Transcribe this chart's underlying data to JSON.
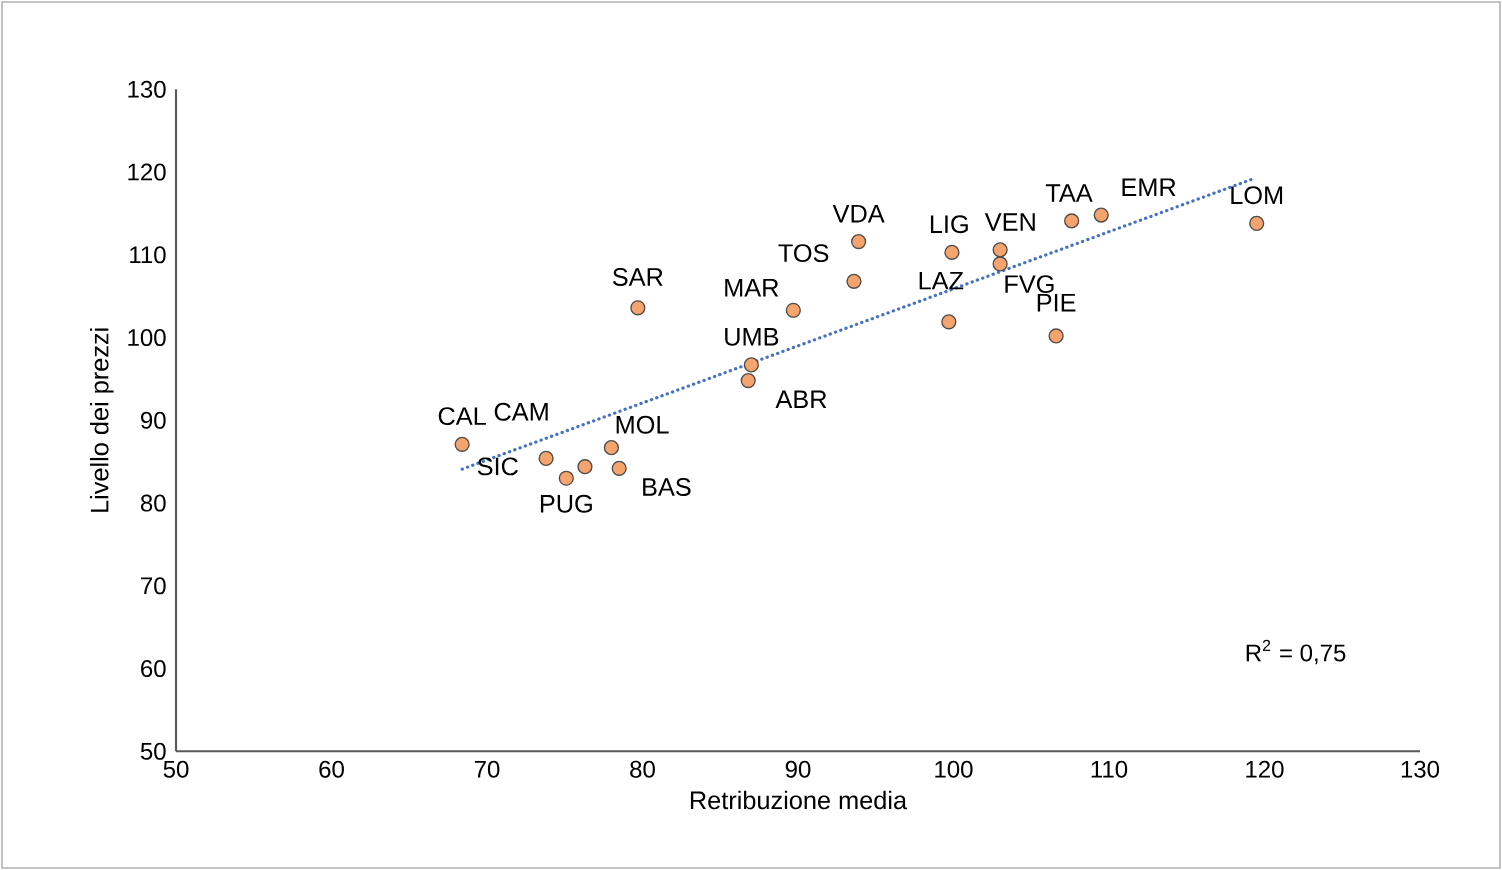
{
  "chart_data": {
    "type": "scatter",
    "xlabel": "Retribuzione media",
    "ylabel": "Livello dei prezzi",
    "xlim": [
      50,
      130
    ],
    "xticks": [
      50,
      60,
      70,
      80,
      90,
      100,
      110,
      120,
      130
    ],
    "ylim": [
      50,
      130
    ],
    "yticks": [
      50,
      60,
      70,
      80,
      90,
      100,
      110,
      120,
      130
    ],
    "series": [
      {
        "type": "scatter",
        "marker": "circle",
        "color": "#f4a46c",
        "x": [
          68.4,
          73.8,
          76.3,
          75.1,
          78.0,
          78.5,
          87.0,
          86.8,
          79.7,
          89.7,
          93.6,
          93.9,
          99.9,
          103.0,
          103.0,
          99.7,
          107.6,
          109.5,
          119.5,
          106.6
        ],
        "values": [
          87.1,
          85.4,
          84.4,
          83.0,
          86.7,
          84.2,
          96.7,
          94.8,
          103.6,
          103.3,
          106.8,
          111.6,
          110.3,
          110.6,
          108.9,
          101.9,
          114.1,
          114.8,
          113.8,
          100.2
        ]
      },
      {
        "type": "line",
        "color": "#4472c4",
        "line_style": "dotted",
        "marker": "none",
        "x": [
          68.4,
          119.3
        ],
        "values": [
          84.1,
          119.2
        ]
      }
    ],
    "annotations": [
      "R$^{2}$ = 0,75",
      {
        "text": "CAL",
        "x": 68.4,
        "y": 87.1
      },
      {
        "text": "SIC",
        "x": 73.8,
        "y": 85.4
      },
      {
        "text": "CAM",
        "x": 76.3,
        "y": 84.4
      },
      {
        "text": "PUG",
        "x": 75.1,
        "y": 83.0
      },
      {
        "text": "MOL",
        "x": 78.0,
        "y": 86.7
      },
      {
        "text": "BAS",
        "x": 78.5,
        "y": 84.2
      },
      {
        "text": "UMB",
        "x": 87.0,
        "y": 96.7
      },
      {
        "text": "ABR",
        "x": 86.8,
        "y": 94.8
      },
      {
        "text": "SAR",
        "x": 79.7,
        "y": 103.6
      },
      {
        "text": "MAR",
        "x": 89.7,
        "y": 103.3
      },
      {
        "text": "TOS",
        "x": 93.6,
        "y": 106.8
      },
      {
        "text": "VDA",
        "x": 93.9,
        "y": 111.6
      },
      {
        "text": "LIG",
        "x": 99.9,
        "y": 110.3
      },
      {
        "text": "VEN",
        "x": 103.0,
        "y": 110.6
      },
      {
        "text": "FVG",
        "x": 103.0,
        "y": 108.9
      },
      {
        "text": "LAZ",
        "x": 99.7,
        "y": 101.9
      },
      {
        "text": "TAA",
        "x": 107.6,
        "y": 114.1
      },
      {
        "text": "EMR",
        "x": 109.5,
        "y": 114.8
      },
      {
        "text": "LOM",
        "x": 119.5,
        "y": 113.8
      },
      {
        "text": "PIE",
        "x": 106.6,
        "y": 100.2
      }
    ]
  }
}
